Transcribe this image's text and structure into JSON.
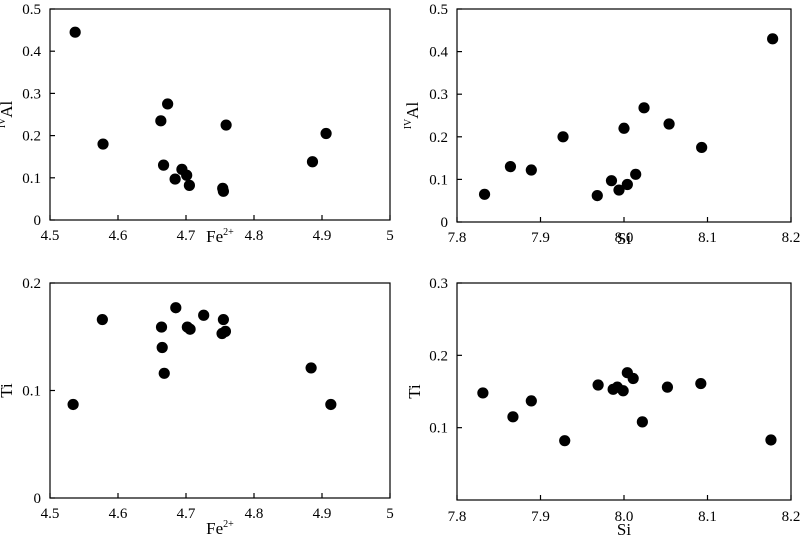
{
  "chart_data": [
    {
      "type": "scatter",
      "xlabel": "Fe",
      "xlabel_sup": "2+",
      "ylabel": "Al",
      "ylabel_pre": "IV",
      "xlim": [
        4.5,
        5
      ],
      "ylim": [
        0,
        0.5
      ],
      "xticks": [
        "4.5",
        "4.6",
        "4.7",
        "4.8",
        "4.9",
        "5"
      ],
      "yticks": [
        "0",
        "0.1",
        "0.2",
        "0.3",
        "0.4",
        "0.5"
      ],
      "x": [
        4.537,
        4.578,
        4.663,
        4.667,
        4.673,
        4.684,
        4.694,
        4.701,
        4.705,
        4.754,
        4.755,
        4.759,
        4.886,
        4.906
      ],
      "y": [
        0.445,
        0.18,
        0.235,
        0.13,
        0.275,
        0.097,
        0.12,
        0.106,
        0.082,
        0.075,
        0.068,
        0.225,
        0.138,
        0.205
      ]
    },
    {
      "type": "scatter",
      "xlabel": "Si",
      "ylabel": "Al",
      "ylabel_pre": "IV",
      "xlim": [
        7.8,
        8.2
      ],
      "ylim": [
        0,
        0.5
      ],
      "xticks": [
        "7.8",
        "7.9",
        "8.0",
        "8.1",
        "8.2"
      ],
      "yticks": [
        "0",
        "0.1",
        "0.2",
        "0.3",
        "0.4",
        "0.5"
      ],
      "x": [
        7.833,
        7.864,
        7.889,
        7.927,
        7.968,
        7.985,
        7.994,
        8.0,
        8.004,
        8.014,
        8.024,
        8.054,
        8.093,
        8.178
      ],
      "y": [
        0.065,
        0.13,
        0.122,
        0.2,
        0.062,
        0.097,
        0.075,
        0.22,
        0.088,
        0.112,
        0.268,
        0.23,
        0.175,
        0.43
      ]
    },
    {
      "type": "scatter",
      "xlabel": "Fe",
      "xlabel_sup": "2+",
      "ylabel": "Ti",
      "xlim": [
        4.5,
        5
      ],
      "ylim": [
        0,
        0.2
      ],
      "xticks": [
        "4.5",
        "4.6",
        "4.7",
        "4.8",
        "4.9",
        "5"
      ],
      "yticks": [
        "0",
        "0.1",
        "0.2"
      ],
      "x": [
        4.534,
        4.577,
        4.664,
        4.665,
        4.668,
        4.685,
        4.702,
        4.706,
        4.726,
        4.753,
        4.755,
        4.758,
        4.884,
        4.913
      ],
      "y": [
        0.087,
        0.166,
        0.159,
        0.14,
        0.116,
        0.177,
        0.159,
        0.157,
        0.17,
        0.153,
        0.166,
        0.155,
        0.121,
        0.087
      ]
    },
    {
      "type": "scatter",
      "xlabel": "Si",
      "ylabel": "Ti",
      "xlim": [
        7.8,
        8.2
      ],
      "ylim": [
        0,
        0.3
      ],
      "xticks": [
        "7.8",
        "7.9",
        "8.0",
        "8.1",
        "8.2"
      ],
      "yticks": [
        "0.1",
        "0.2",
        "0.3"
      ],
      "x": [
        7.831,
        7.867,
        7.889,
        7.929,
        7.969,
        7.987,
        7.992,
        7.999,
        8.004,
        8.011,
        8.022,
        8.052,
        8.092,
        8.176
      ],
      "y": [
        0.148,
        0.115,
        0.137,
        0.082,
        0.159,
        0.153,
        0.156,
        0.151,
        0.176,
        0.168,
        0.108,
        0.156,
        0.161,
        0.083
      ]
    }
  ]
}
